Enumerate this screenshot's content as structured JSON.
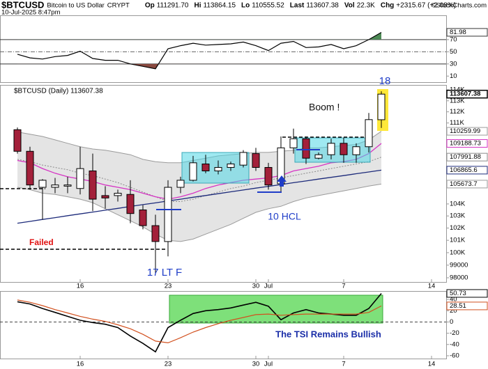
{
  "header": {
    "symbol": "$BTCUSD",
    "name": "Bitcoin to US Dollar",
    "exchange": "CRYPT",
    "datetime": "10-Jul-2025 8:47pm",
    "fields": [
      {
        "label": "Op",
        "value": "111291.70"
      },
      {
        "label": "Hi",
        "value": "113864.15"
      },
      {
        "label": "Lo",
        "value": "110555.52"
      },
      {
        "label": "Last",
        "value": "113607.38"
      },
      {
        "label": "Vol",
        "value": "22.3K"
      },
      {
        "label": "Chg",
        "value": "+2315.67 (+2.08%)"
      }
    ],
    "credit": "©StockCharts.com"
  },
  "chart_data": [
    {
      "type": "line",
      "color": "#000000",
      "fill_above_color": "#4d8a55",
      "fill_below_color": "#8a4a40",
      "values": [
        46,
        40,
        38,
        42,
        44,
        51,
        39,
        36,
        36,
        30,
        26,
        22,
        55,
        60,
        64,
        61,
        62,
        63,
        66,
        60,
        52,
        64,
        67,
        57,
        58,
        62,
        55,
        60,
        70,
        81.98,
        null,
        null,
        null,
        null,
        null
      ],
      "ylim": [
        0,
        110
      ],
      "yticks": [
        10,
        30,
        50,
        70
      ]
    },
    {
      "type": "candlestick",
      "legend_label": "$BTCUSD (Daily) 113607.38",
      "log": true,
      "up_color": "#ffffff",
      "down_color": "#a3203a",
      "categories": [
        null,
        null,
        null,
        null,
        null,
        "16",
        null,
        null,
        null,
        null,
        null,
        null,
        "23",
        null,
        null,
        null,
        null,
        null,
        null,
        "30",
        "Jul",
        null,
        null,
        null,
        null,
        null,
        "7",
        null,
        null,
        null,
        null,
        null,
        null,
        "14",
        null
      ],
      "open": [
        110400,
        108500,
        105400,
        105400,
        105500,
        105300,
        106800,
        104700,
        104700,
        104800,
        103500,
        102200,
        100900,
        105400,
        106000,
        107400,
        106800,
        107100,
        107300,
        108300,
        107100,
        105700,
        108800,
        109600,
        107900,
        108200,
        109200,
        108200,
        108900,
        111291.7,
        null,
        null,
        null,
        null,
        null
      ],
      "high": [
        110600,
        108900,
        106100,
        106200,
        106300,
        108900,
        108300,
        105500,
        105200,
        106000,
        103900,
        103100,
        106000,
        106300,
        108100,
        108200,
        107700,
        107600,
        108600,
        108800,
        107500,
        109800,
        110500,
        109800,
        108400,
        109600,
        109700,
        109200,
        111900,
        113864.15,
        null,
        null,
        null,
        null,
        null
      ],
      "low": [
        108300,
        105200,
        102700,
        104900,
        104900,
        104800,
        103400,
        103600,
        104200,
        102400,
        101900,
        98300,
        99700,
        104900,
        105900,
        106600,
        106500,
        106800,
        107100,
        106800,
        105200,
        105000,
        108300,
        107400,
        107800,
        107800,
        107500,
        107500,
        108400,
        110555.52,
        null,
        null,
        null,
        null,
        null
      ],
      "close": [
        108500,
        105600,
        106000,
        105600,
        105600,
        107000,
        104400,
        104500,
        104900,
        103200,
        102200,
        100900,
        105400,
        106000,
        107500,
        106800,
        107100,
        107400,
        108400,
        107100,
        105600,
        108800,
        109600,
        107900,
        108200,
        109200,
        108200,
        108900,
        111300,
        113607.38,
        null,
        null,
        null,
        null,
        null
      ],
      "series": [
        {
          "color": "#9a9a9a",
          "values": [
            110200,
            110000,
            109800,
            109500,
            109200,
            108900,
            108700,
            108600,
            108400,
            108200,
            107800,
            107600,
            107500,
            107500,
            107700,
            107900,
            108100,
            108200,
            108300,
            108400,
            108400,
            108500,
            108600,
            108800,
            108800,
            108900,
            109000,
            109100,
            109500,
            110259.99,
            null,
            null,
            null,
            null,
            null
          ]
        },
        {
          "color": "#8a8a8a",
          "values": [
            107800,
            107600,
            107300,
            107100,
            106900,
            106600,
            106400,
            106100,
            105800,
            105400,
            105000,
            104600,
            104200,
            104200,
            104400,
            104700,
            105000,
            105300,
            105500,
            105800,
            106000,
            106200,
            106400,
            106600,
            106800,
            107000,
            107200,
            107400,
            107600,
            107991.88,
            null,
            null,
            null,
            null,
            null
          ]
        },
        {
          "color": "#9a9a9a",
          "values": [
            105400,
            105200,
            104900,
            104800,
            104600,
            104400,
            104100,
            103600,
            103100,
            102600,
            102100,
            101500,
            101000,
            100900,
            101100,
            101500,
            101900,
            102300,
            102800,
            103300,
            103600,
            103800,
            104200,
            104500,
            104700,
            104900,
            105100,
            105300,
            105500,
            105673.7,
            null,
            null,
            null,
            null,
            null
          ]
        },
        {
          "color": "#d633c4",
          "values": [
            107700,
            107500,
            107000,
            106600,
            106300,
            106100,
            105900,
            105600,
            105400,
            105200,
            104900,
            104600,
            104400,
            104600,
            104900,
            105300,
            105600,
            105800,
            106000,
            106100,
            106200,
            106400,
            106800,
            107000,
            107200,
            107500,
            107600,
            107800,
            108300,
            109188.73,
            null,
            null,
            null,
            null,
            null
          ]
        },
        {
          "color": "#1c2a7a",
          "values": [
            102400,
            102550,
            102710,
            102860,
            103020,
            103170,
            103320,
            103480,
            103630,
            103790,
            103940,
            104090,
            104250,
            104400,
            104560,
            104710,
            104860,
            105020,
            105170,
            105330,
            105480,
            105630,
            105790,
            105940,
            106100,
            106250,
            106400,
            106560,
            106710,
            106865.6,
            null,
            null,
            null,
            null,
            null
          ]
        }
      ],
      "band_color": "#e4e4e4",
      "ylim": [
        97670,
        114450
      ],
      "yticks": [
        {
          "value": 114000,
          "label": "114K"
        },
        {
          "value": 113000,
          "label": "113K"
        },
        {
          "value": 112000,
          "label": "112K"
        },
        {
          "value": 111000,
          "label": "111K"
        },
        {
          "value": 104000,
          "label": "104K"
        },
        {
          "value": 103000,
          "label": "103K"
        },
        {
          "value": 102000,
          "label": "102K"
        },
        {
          "value": 101000,
          "label": "101K"
        },
        {
          "value": 100000,
          "label": "100K"
        },
        99000,
        98000
      ],
      "annotations": [
        {
          "text": "Boom !",
          "color": "#111111"
        },
        {
          "text": "18",
          "color": "#1f3dc8"
        },
        {
          "text": "10 HCL",
          "color": "#1f3dc8"
        },
        {
          "text": "17 LT F",
          "color": "#1f3dc8"
        },
        {
          "text": "Failed",
          "color": "#e01010"
        }
      ]
    },
    {
      "type": "line",
      "categories": [
        null,
        null,
        null,
        null,
        null,
        "16",
        null,
        null,
        null,
        null,
        null,
        null,
        "23",
        null,
        null,
        null,
        null,
        null,
        null,
        "30",
        "Jul",
        null,
        null,
        null,
        null,
        null,
        "7",
        null,
        null,
        null,
        null,
        null,
        null,
        "14",
        null
      ],
      "series": [
        {
          "color": "#000000",
          "values": [
            36,
            32,
            24,
            17,
            10,
            3,
            -1,
            -4,
            -10,
            -25,
            -38,
            -53,
            -10,
            3,
            15,
            20,
            22,
            25,
            30,
            35,
            28,
            4,
            16,
            22,
            16,
            14,
            12,
            12,
            24,
            50.73,
            null,
            null,
            null,
            null,
            null
          ]
        },
        {
          "color": "#d2501e",
          "values": [
            39,
            35,
            29,
            22,
            16,
            10,
            5,
            1,
            -5,
            -12,
            -22,
            -34,
            -37,
            -28,
            -18,
            -10,
            -3,
            3,
            8,
            13,
            14,
            12,
            13,
            14,
            14,
            14,
            14,
            14,
            17,
            28.51,
            null,
            null,
            null,
            null,
            null
          ]
        }
      ],
      "ylim": [
        -65,
        55
      ],
      "yticks": [
        40,
        20,
        0,
        -20,
        -40,
        -60
      ],
      "annotations": [
        {
          "text": "The TSI Remains Bullish",
          "color": "#1a2ea8"
        }
      ]
    }
  ]
}
